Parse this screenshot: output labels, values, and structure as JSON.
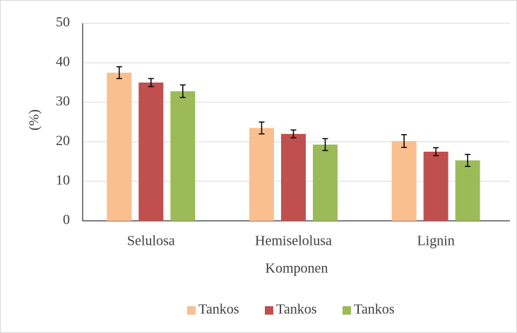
{
  "chart_data": {
    "type": "bar",
    "categories": [
      "Selulosa",
      "Hemiselolusa",
      "Lignin"
    ],
    "series": [
      {
        "name": "Tankos",
        "color": "#f9bf8f",
        "values": [
          37.5,
          23.5,
          20.2
        ],
        "errors": [
          1.5,
          1.5,
          1.6
        ]
      },
      {
        "name": "Tankos",
        "color": "#c0504d",
        "values": [
          35,
          22,
          17.5
        ],
        "errors": [
          1,
          1,
          1
        ]
      },
      {
        "name": "Tankos",
        "color": "#9bbb59",
        "values": [
          32.8,
          19.3,
          15.3
        ],
        "errors": [
          1.6,
          1.5,
          1.5
        ]
      }
    ],
    "ylabel": "(%)",
    "xlabel": "Komponen",
    "ylim": [
      0,
      50
    ],
    "yticks": [
      0,
      10,
      20,
      30,
      40,
      50
    ],
    "grid": true,
    "legend": "bottom"
  }
}
